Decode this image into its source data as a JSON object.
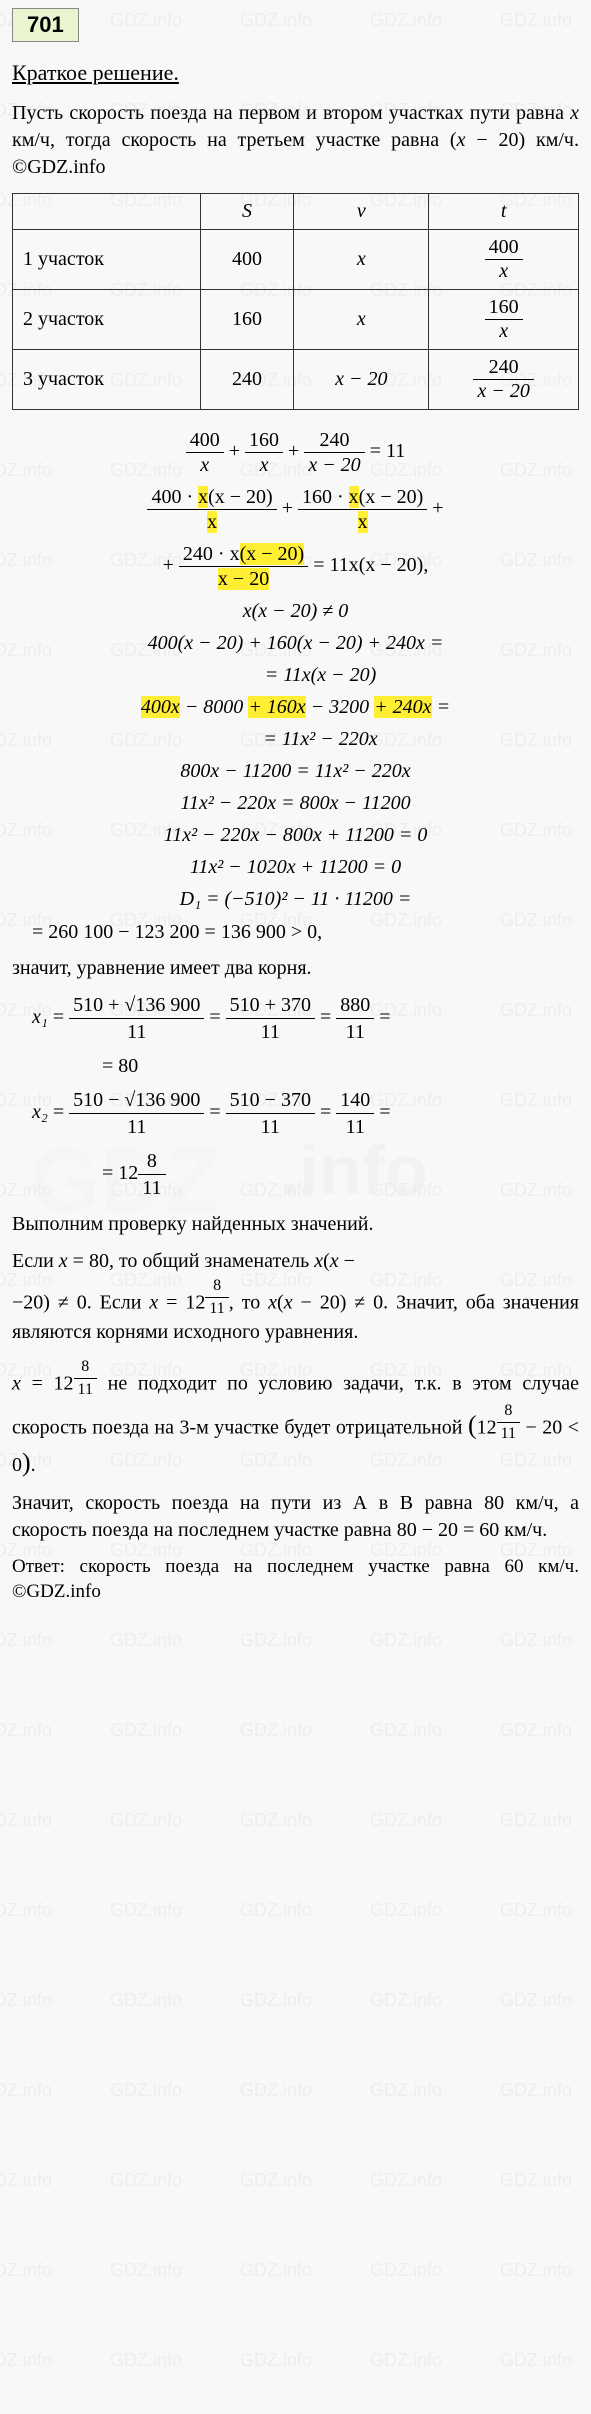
{
  "badge": "701",
  "section_title": "Краткое решение.",
  "intro": "Пусть скорость поезда на первом и втором участках пути равна <span class='ital'>x</span> км/ч, тогда скорость на третьем участке равна (<span class='ital'>x</span> − 20) км/ч. ©GDZ.info",
  "table": {
    "headers": [
      "",
      "S",
      "v",
      "t"
    ],
    "rows": [
      {
        "label": "1 участок",
        "s": "400",
        "v": "x",
        "t_num": "400",
        "t_den": "x"
      },
      {
        "label": "2 участок",
        "s": "160",
        "v": "x",
        "t_num": "160",
        "t_den": "x"
      },
      {
        "label": "3 участок",
        "s": "240",
        "v": "x − 20",
        "t_num": "240",
        "t_den": "x − 20"
      }
    ]
  },
  "eq1_parts": [
    {
      "num": "400",
      "den": "x"
    },
    {
      "num": "160",
      "den": "x"
    },
    {
      "num": "240",
      "den": "x − 20"
    }
  ],
  "eq1_rhs": "= 11",
  "eq2_parts": [
    {
      "num": "400 · <span class='hl'>x</span>(x − 20)",
      "den": "<span class='hl'>x</span>"
    },
    {
      "num": "160 · <span class='hl'>x</span>(x − 20)",
      "den": "<span class='hl'>x</span>"
    }
  ],
  "eq2_cont": {
    "num": "240 · x<span class='hl'>(x − 20)</span>",
    "den": "<span class='hl'>x − 20</span>",
    "rhs": "= 11x(x − 20),"
  },
  "eq3": "x(x − 20) ≠ 0",
  "eq4": "400(x − 20) + 160(x − 20) + 240x =",
  "eq4b": "= 11x(x − 20)",
  "eq5": "<span class='hl'>400x</span> − 8000 <span class='hl'>+ 160x</span> − 3200 <span class='hl'>+ 240x</span> =",
  "eq5b": "= 11x² − 220x",
  "eq6": "800x − 11200 = 11x² − 220x",
  "eq7": "11x² − 220x = 800x − 11200",
  "eq8": "11x² − 220x − 800x + 11200 = 0",
  "eq9": "11x² − 1020x + 11200 = 0",
  "eq10": "D₁ = (−510)² − 11 · 11200 =",
  "eq11": "= 260 100 − 123 200 = 136 900 > 0,",
  "two_roots": "значит, уравнение имеет два корня.",
  "x1": {
    "label": "x₁",
    "f1_num": "510 + √136 900",
    "f1_den": "11",
    "f2_num": "510 + 370",
    "f2_den": "11",
    "f3_num": "880",
    "f3_den": "11",
    "result": "= 80"
  },
  "x2": {
    "label": "x₂",
    "f1_num": "510 − √136 900",
    "f1_den": "11",
    "f2_num": "510 − 370",
    "f2_den": "11",
    "f3_num": "140",
    "f3_den": "11",
    "result_int": "12",
    "result_num": "8",
    "result_den": "11"
  },
  "check_intro": "Выполним проверку найденных значений.",
  "check1_a": "Если <span class='ital'>x</span> = 80, то общий знаменатель <span class='ital'>x</span>(<span class='ital'>x</span> − <br>−20) ≠ 0. Если <span class='ital'>x</span> = 12",
  "check1_frac_num": "8",
  "check1_frac_den": "11",
  "check1_b": ", то <span class='ital'>x</span>(<span class='ital'>x</span> − 20) ≠ 0. Значит, оба значения являются корнями исходного уравнения.",
  "reject_a": "<span class='ital'>x</span> = 12",
  "reject_frac_num": "8",
  "reject_frac_den": "11",
  "reject_b": " не подходит по условию задачи, т.к. в этом случае скорость поезда на 3-м участке будет отрицательной ",
  "reject_paren_a": "12",
  "reject_paren_num": "8",
  "reject_paren_den": "11",
  "reject_paren_b": " − 20 < 0",
  "conclusion": "Значит, скорость поезда на пути из А в В равна 80 км/ч, а скорость поезда на последнем участке равна 80 − 20 = 60 км/ч.",
  "answer": "Ответ: скорость поезда на последнем участке равна 60 км/ч. ©GDZ.info"
}
